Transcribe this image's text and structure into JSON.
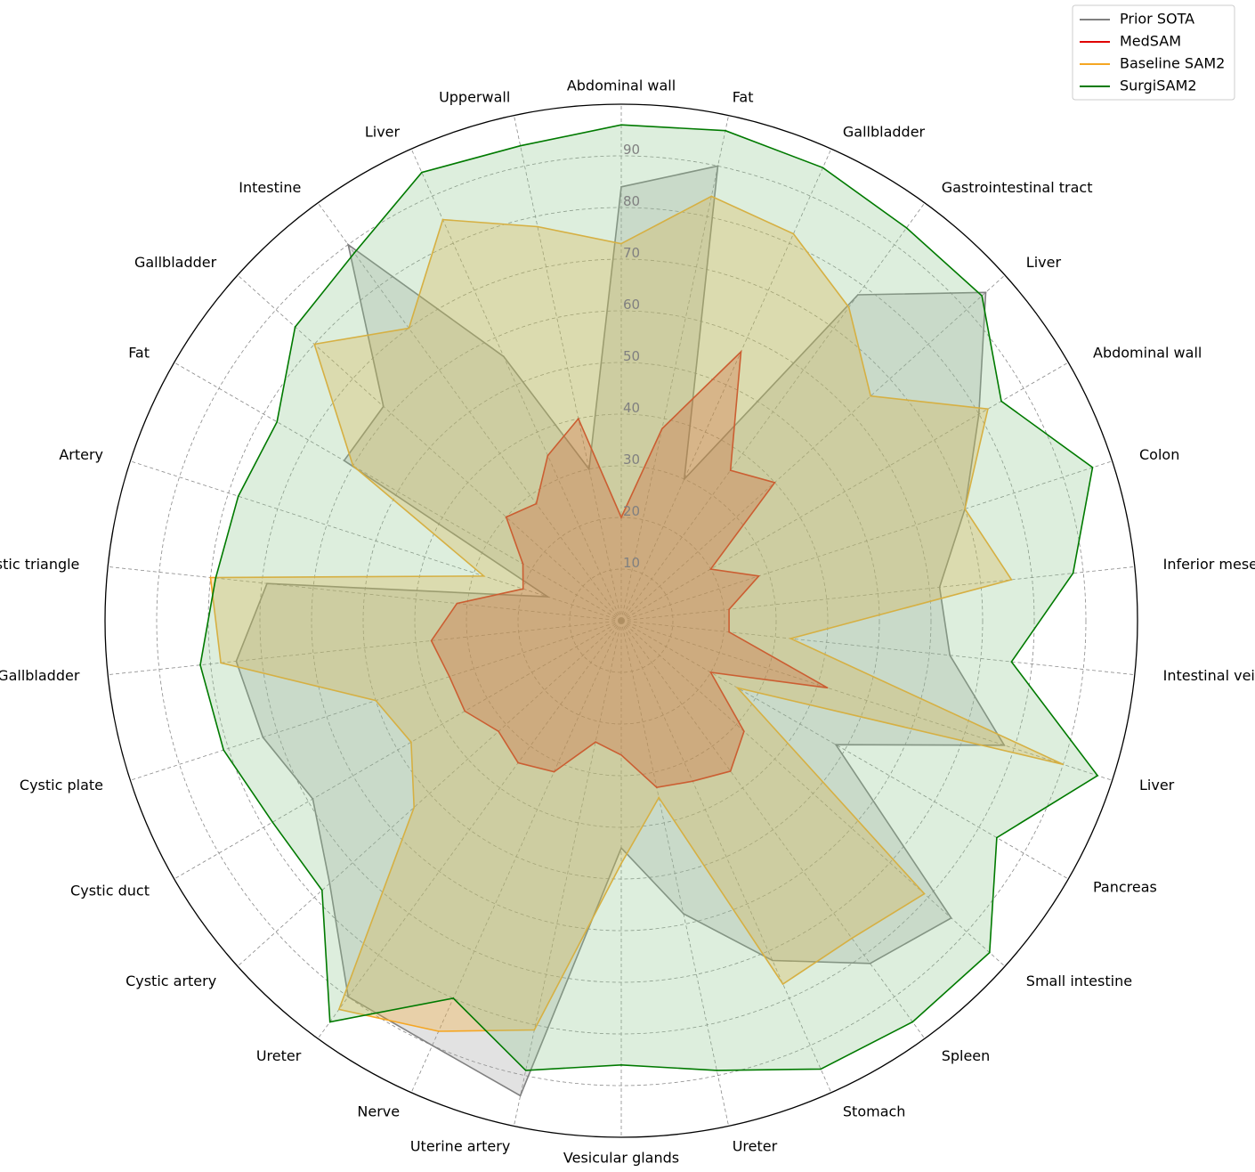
{
  "chart_data": {
    "type": "radar",
    "categories": [
      "Abdominal wall",
      "Fat",
      "Gallbladder",
      "Gastrointestinal tract",
      "Liver",
      "Abdominal wall",
      "Colon",
      "Inferior mesenteric artery",
      "Intestinal veins",
      "Liver",
      "Pancreas",
      "Small intestine",
      "Spleen",
      "Stomach",
      "Ureter",
      "Vesicular glands",
      "Uterine artery",
      "Nerve",
      "Ureter",
      "Cystic artery",
      "Cystic duct",
      "Cystic plate",
      "Gallbladder",
      "Hepatocystic triangle",
      "Artery",
      "Fat",
      "Gallbladder",
      "Intestine",
      "Liver",
      "Upperwall"
    ],
    "ticks": [
      "10",
      "20",
      "30",
      "40",
      "50",
      "60",
      "70",
      "80",
      "90"
    ],
    "rlim": [
      0,
      100
    ],
    "grid": true,
    "legend_position": "top-right",
    "series": [
      {
        "name": "Prior SOTA",
        "color": "#808080",
        "fill": "#a0a0a0",
        "values": [
          84,
          90,
          30,
          78,
          95,
          80,
          70,
          62,
          64,
          78,
          48,
          86,
          82,
          72,
          58,
          44,
          94,
          90,
          90,
          76,
          69,
          73,
          75,
          69,
          15,
          62,
          62,
          90,
          56,
          30
        ]
      },
      {
        "name": "MedSAM",
        "color": "#e00000",
        "fill": "#e00000",
        "values": [
          20,
          38,
          57,
          36,
          40,
          20,
          28,
          21,
          21,
          42,
          20,
          32,
          36,
          34,
          33,
          26,
          24,
          32,
          34,
          32,
          35,
          35,
          37,
          32,
          20,
          22,
          30,
          28,
          35,
          40
        ]
      },
      {
        "name": "Baseline SAM2",
        "color": "#f5a623",
        "fill": "#f5a623",
        "values": [
          73,
          84,
          82,
          75,
          65,
          82,
          70,
          76,
          33,
          90,
          26,
          79,
          76,
          77,
          35,
          47,
          81,
          87,
          93,
          54,
          47,
          50,
          78,
          80,
          28,
          60,
          80,
          70,
          85,
          78
        ]
      },
      {
        "name": "SurgiSAM2",
        "color": "#007a00",
        "fill": "#90c890",
        "values": [
          96,
          97,
          96,
          94,
          94,
          85,
          96,
          88,
          76,
          97,
          84,
          96,
          96,
          95,
          89,
          86,
          89,
          80,
          96,
          78,
          78,
          81,
          82,
          79,
          78,
          77,
          85,
          88,
          95,
          94
        ]
      }
    ]
  }
}
